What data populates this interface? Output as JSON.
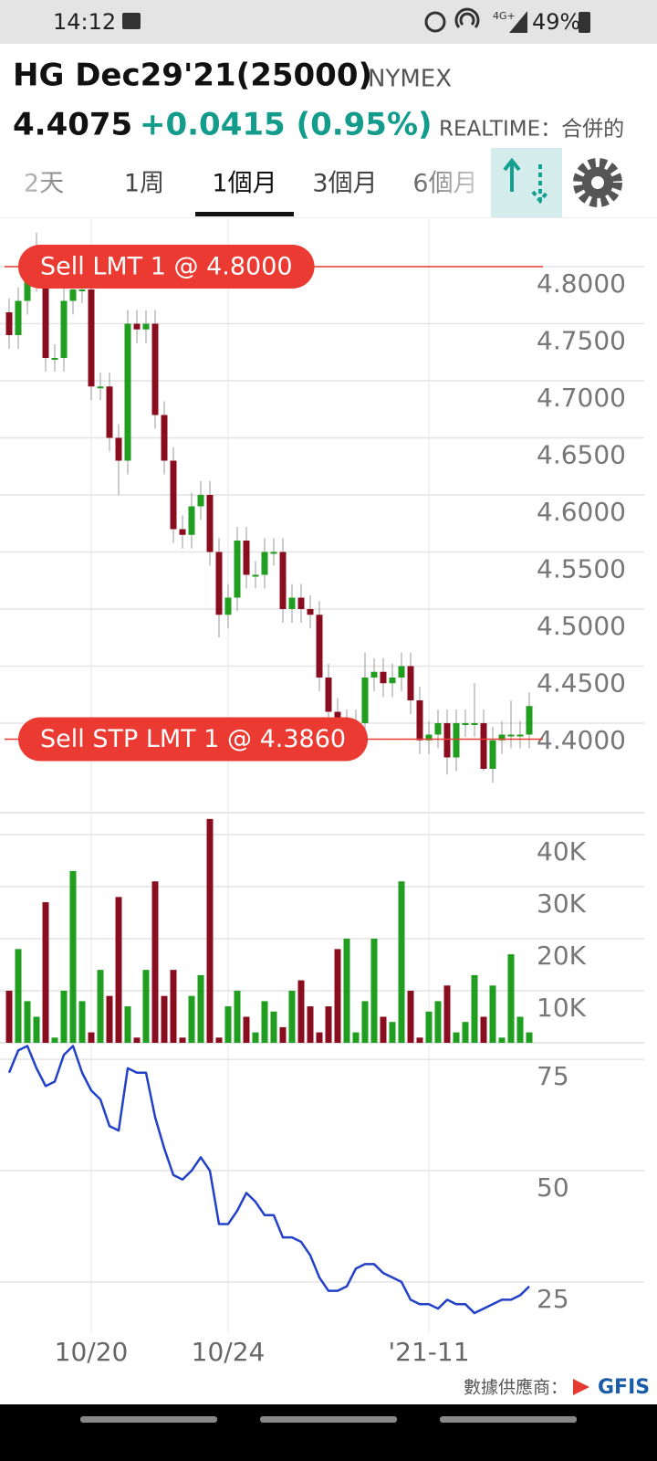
{
  "status_bar": {
    "time": "14:12",
    "network": "4G+",
    "battery": "49%"
  },
  "header": {
    "symbol": "HG Dec29'21(25000)",
    "exchange": "NYMEX",
    "price": "4.4075",
    "change": "+0.0415 (0.95%)",
    "feed": "REALTIME：合併的"
  },
  "tabs": {
    "items": [
      "2天",
      "1周",
      "1個月",
      "3個月",
      "6個月"
    ],
    "active": 2
  },
  "footer": {
    "provider": "數據供應商：",
    "logo": "GFIS"
  },
  "chart_data": [
    {
      "type": "candlestick",
      "categories": [
        null,
        null,
        null,
        null,
        null,
        null,
        null,
        null,
        null,
        "10/20",
        null,
        null,
        null,
        null,
        null,
        null,
        null,
        null,
        null,
        null,
        null,
        null,
        null,
        null,
        "10/24",
        null,
        null,
        null,
        null,
        null,
        null,
        null,
        null,
        null,
        null,
        null,
        null,
        null,
        null,
        null,
        null,
        null,
        null,
        null,
        null,
        null,
        "'21-11",
        null,
        null,
        null,
        null,
        null,
        null,
        null,
        null,
        null,
        null,
        null
      ],
      "open": [
        4.76,
        4.74,
        4.77,
        4.79,
        4.79,
        4.72,
        4.72,
        4.77,
        4.78,
        4.78,
        4.695,
        4.695,
        4.65,
        4.63,
        4.75,
        4.745,
        4.75,
        4.67,
        4.63,
        4.57,
        4.565,
        4.59,
        4.6,
        4.55,
        4.495,
        4.51,
        4.56,
        4.53,
        4.53,
        4.55,
        4.55,
        4.5,
        4.51,
        4.5,
        4.495,
        4.44,
        4.41,
        4.4,
        4.4,
        4.4,
        4.44,
        4.445,
        4.435,
        4.44,
        4.45,
        4.42,
        4.385,
        4.39,
        4.4,
        4.37,
        4.4,
        4.4,
        4.4,
        4.36,
        4.385,
        4.39,
        4.39,
        4.39
      ],
      "high": [
        4.772,
        4.782,
        4.802,
        4.83,
        4.802,
        4.732,
        4.782,
        4.792,
        4.792,
        4.792,
        4.707,
        4.707,
        4.662,
        4.762,
        4.762,
        4.762,
        4.762,
        4.682,
        4.642,
        4.582,
        4.602,
        4.612,
        4.612,
        4.562,
        4.522,
        4.572,
        4.572,
        4.542,
        4.562,
        4.562,
        4.562,
        4.522,
        4.522,
        4.512,
        4.507,
        4.452,
        4.422,
        4.412,
        4.412,
        4.462,
        4.457,
        4.457,
        4.452,
        4.462,
        4.462,
        4.432,
        4.402,
        4.412,
        4.412,
        4.412,
        4.412,
        4.435,
        4.412,
        4.397,
        4.402,
        4.42,
        4.402,
        4.427
      ],
      "low": [
        4.728,
        4.728,
        4.758,
        4.778,
        4.708,
        4.708,
        4.708,
        4.758,
        4.768,
        4.683,
        4.683,
        4.638,
        4.6,
        4.618,
        4.733,
        4.733,
        4.658,
        4.618,
        4.558,
        4.553,
        4.553,
        4.578,
        4.538,
        4.475,
        4.483,
        4.498,
        4.518,
        4.518,
        4.518,
        4.538,
        4.488,
        4.488,
        4.488,
        4.483,
        4.428,
        4.398,
        4.388,
        4.375,
        4.388,
        4.388,
        4.428,
        4.423,
        4.423,
        4.428,
        4.408,
        4.373,
        4.373,
        4.378,
        4.355,
        4.358,
        4.388,
        4.388,
        4.358,
        4.348,
        4.373,
        4.378,
        4.378,
        4.378
      ],
      "close": [
        4.74,
        4.77,
        4.79,
        4.79,
        4.72,
        4.72,
        4.77,
        4.78,
        4.78,
        4.695,
        4.695,
        4.65,
        4.63,
        4.75,
        4.745,
        4.75,
        4.67,
        4.63,
        4.57,
        4.565,
        4.59,
        4.6,
        4.55,
        4.495,
        4.51,
        4.56,
        4.53,
        4.53,
        4.55,
        4.55,
        4.5,
        4.51,
        4.5,
        4.495,
        4.44,
        4.41,
        4.4,
        4.4,
        4.4,
        4.44,
        4.445,
        4.435,
        4.44,
        4.45,
        4.42,
        4.385,
        4.39,
        4.4,
        4.37,
        4.4,
        4.4,
        4.4,
        4.36,
        4.385,
        4.39,
        4.39,
        4.39,
        4.415
      ],
      "up_color": "#1f9e1f",
      "down_color": "#8a0d1f",
      "ylim": [
        4.3216,
        4.8416
      ],
      "yticks": [
        {
          "value": 4.4,
          "label": "4.4000"
        },
        {
          "value": 4.45,
          "label": "4.4500"
        },
        {
          "value": 4.5,
          "label": "4.5000"
        },
        {
          "value": 4.55,
          "label": "4.5500"
        },
        {
          "value": 4.6,
          "label": "4.6000"
        },
        {
          "value": 4.65,
          "label": "4.6500"
        },
        {
          "value": 4.7,
          "label": "4.7000"
        },
        {
          "value": 4.75,
          "label": "4.7500"
        },
        {
          "value": 4.8,
          "label": "4.8000"
        }
      ],
      "grid": true,
      "orders": [
        {
          "label": "Sell LMT 1 @ 4.8000",
          "value": 4.8
        },
        {
          "label": "Sell STP LMT 1 @ 4.3860",
          "value": 4.386
        }
      ],
      "order_color": "#ea3a32"
    },
    {
      "type": "bar",
      "values": [
        10000,
        18000,
        8000,
        5000,
        27000,
        1000,
        10000,
        33000,
        8000,
        2000,
        14000,
        9000,
        28000,
        7000,
        1000,
        14000,
        31000,
        9000,
        14000,
        1000,
        9000,
        13000,
        43000,
        1000,
        7000,
        10000,
        5000,
        2000,
        8000,
        6000,
        3000,
        10000,
        12000,
        7000,
        2000,
        7000,
        18000,
        20000,
        2000,
        8000,
        20000,
        5000,
        4000,
        31000,
        10000,
        1000,
        6000,
        8000,
        11000,
        2000,
        4000,
        13000,
        5000,
        11000,
        1000,
        17000,
        5000,
        2000
      ],
      "ylim": [
        0,
        44200
      ],
      "yticks": [
        {
          "value": 10000,
          "label": "10K"
        },
        {
          "value": 20000,
          "label": "20K"
        },
        {
          "value": 30000,
          "label": "30K"
        },
        {
          "value": 40000,
          "label": "40K"
        }
      ],
      "grid": true
    },
    {
      "type": "line",
      "values": [
        72,
        77,
        78,
        73,
        69,
        70,
        76,
        78,
        72,
        68,
        66,
        60,
        59,
        73,
        72,
        72,
        62,
        55,
        49,
        48,
        50,
        53,
        50,
        38,
        38,
        41,
        45,
        43,
        40,
        40,
        35,
        35,
        34,
        31,
        26,
        23,
        23,
        24,
        28,
        29,
        29,
        27,
        26,
        25,
        21,
        20,
        20,
        19,
        21,
        20,
        20,
        18,
        19,
        20,
        21,
        21,
        22,
        24
      ],
      "color": "#2240c8",
      "ylim": [
        13.5,
        78.1
      ],
      "yticks": [
        25,
        50,
        75
      ],
      "grid": true
    }
  ]
}
